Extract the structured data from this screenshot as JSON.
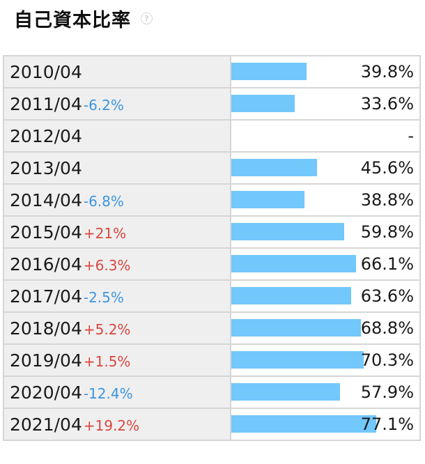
{
  "title": "自己資本比率",
  "help_glyph": "?",
  "colors": {
    "bar": "#72c7fb",
    "increase": "#d9463f",
    "decrease": "#3b95e0"
  },
  "chart_data": {
    "type": "bar",
    "categories": [
      "2010/04",
      "2011/04",
      "2012/04",
      "2013/04",
      "2014/04",
      "2015/04",
      "2016/04",
      "2017/04",
      "2018/04",
      "2019/04",
      "2020/04",
      "2021/04"
    ],
    "series": [
      {
        "values": [
          39.8,
          33.6,
          null,
          45.6,
          38.8,
          59.8,
          66.1,
          63.6,
          68.8,
          70.3,
          57.9,
          77.1
        ]
      }
    ],
    "value_labels": [
      "39.8%",
      "33.6%",
      "-",
      "45.6%",
      "38.8%",
      "59.8%",
      "66.1%",
      "63.6%",
      "68.8%",
      "70.3%",
      "57.9%",
      "77.1%"
    ],
    "changes": [
      "",
      "-6.2%",
      "",
      "",
      "-6.8%",
      "+21%",
      "+6.3%",
      "-2.5%",
      "+5.2%",
      "+1.5%",
      "-12.4%",
      "+19.2%"
    ],
    "max_value": 100
  }
}
